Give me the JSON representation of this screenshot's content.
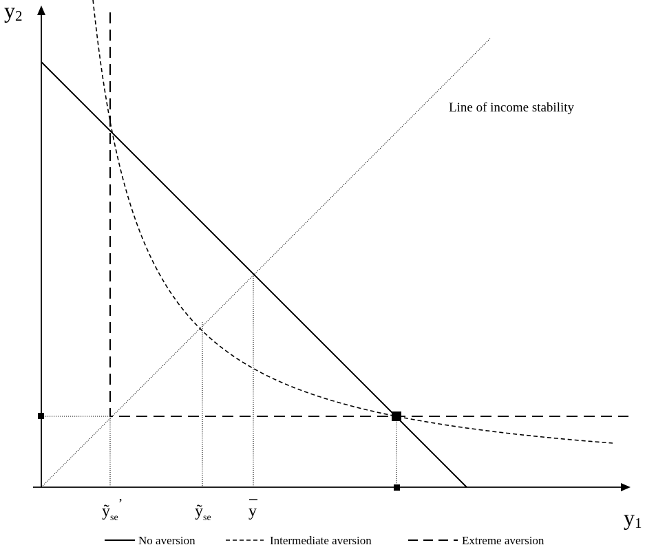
{
  "axes": {
    "y_label_main": "y",
    "y_label_sub": "2",
    "x_label_main": "y",
    "x_label_sub": "1"
  },
  "annotation": {
    "stability_line_label": "Line of income stability"
  },
  "ticks": {
    "y_se_prime": {
      "main": "ỹ",
      "sub": "se",
      "prime": "’"
    },
    "y_se": {
      "main": "ỹ",
      "sub": "se"
    },
    "y_bar": {
      "main": "y"
    }
  },
  "legend": {
    "no_aversion": "No aversion",
    "intermediate_aversion": "Intermediate aversion",
    "extreme_aversion": "Extreme aversion"
  },
  "colors": {
    "ink": "#000000",
    "background": "#ffffff"
  }
}
